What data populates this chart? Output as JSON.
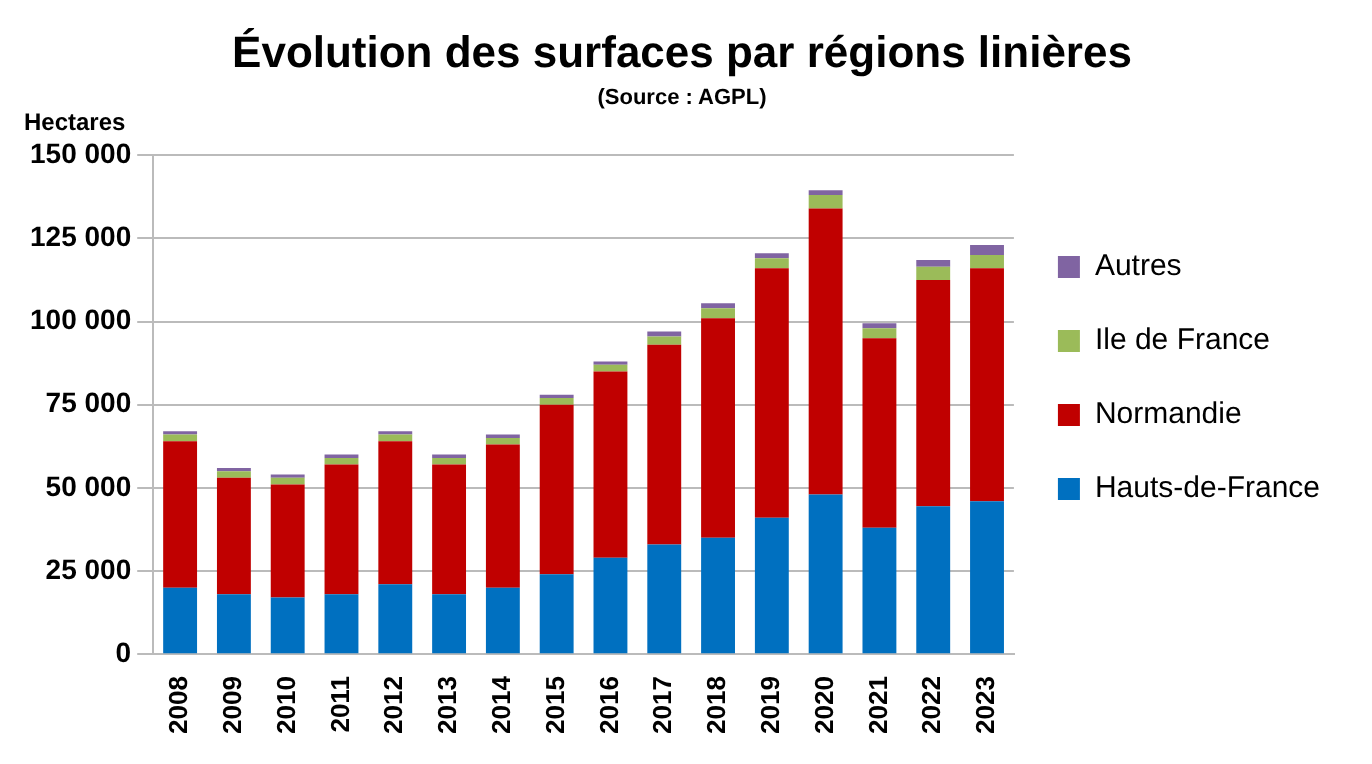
{
  "chart_data": {
    "type": "bar",
    "title": "Évolution des surfaces par régions linières",
    "subtitle": "(Source : AGPL)",
    "ylabel": "Hectares",
    "categories": [
      "2008",
      "2009",
      "2010",
      "2011",
      "2012",
      "2013",
      "2014",
      "2015",
      "2016",
      "2017",
      "2018",
      "2019",
      "2020",
      "2021",
      "2022",
      "2023"
    ],
    "stacked": true,
    "series": [
      {
        "name": "Hauts-de-France",
        "color": "#0070c0",
        "values": [
          20000,
          18000,
          17000,
          18000,
          21000,
          18000,
          20000,
          24000,
          29000,
          33000,
          35000,
          41000,
          48000,
          38000,
          44500,
          46000
        ]
      },
      {
        "name": "Normandie",
        "color": "#c00000",
        "values": [
          44000,
          35000,
          34000,
          39000,
          43000,
          39000,
          43000,
          51000,
          56000,
          60000,
          66000,
          75000,
          86000,
          57000,
          68000,
          70000
        ]
      },
      {
        "name": "Ile de France",
        "color": "#9bbb59",
        "values": [
          2000,
          2000,
          2000,
          2000,
          2000,
          2000,
          2000,
          2000,
          2000,
          2500,
          3000,
          3000,
          4000,
          3000,
          4000,
          4000
        ]
      },
      {
        "name": "Autres",
        "color": "#8064a2",
        "values": [
          1000,
          1000,
          1000,
          1000,
          1000,
          1000,
          1000,
          1000,
          1000,
          1500,
          1500,
          1500,
          1500,
          1500,
          2000,
          3000
        ]
      }
    ],
    "ylim": [
      0,
      150000
    ],
    "yticks": [
      {
        "value": 0,
        "label": "0"
      },
      {
        "value": 25000,
        "label": "25 000"
      },
      {
        "value": 50000,
        "label": "50 000"
      },
      {
        "value": 75000,
        "label": "75 000"
      },
      {
        "value": 100000,
        "label": "100 000"
      },
      {
        "value": 125000,
        "label": "125 000"
      },
      {
        "value": 150000,
        "label": "150 000"
      }
    ],
    "grid": "y",
    "legend": "right"
  }
}
